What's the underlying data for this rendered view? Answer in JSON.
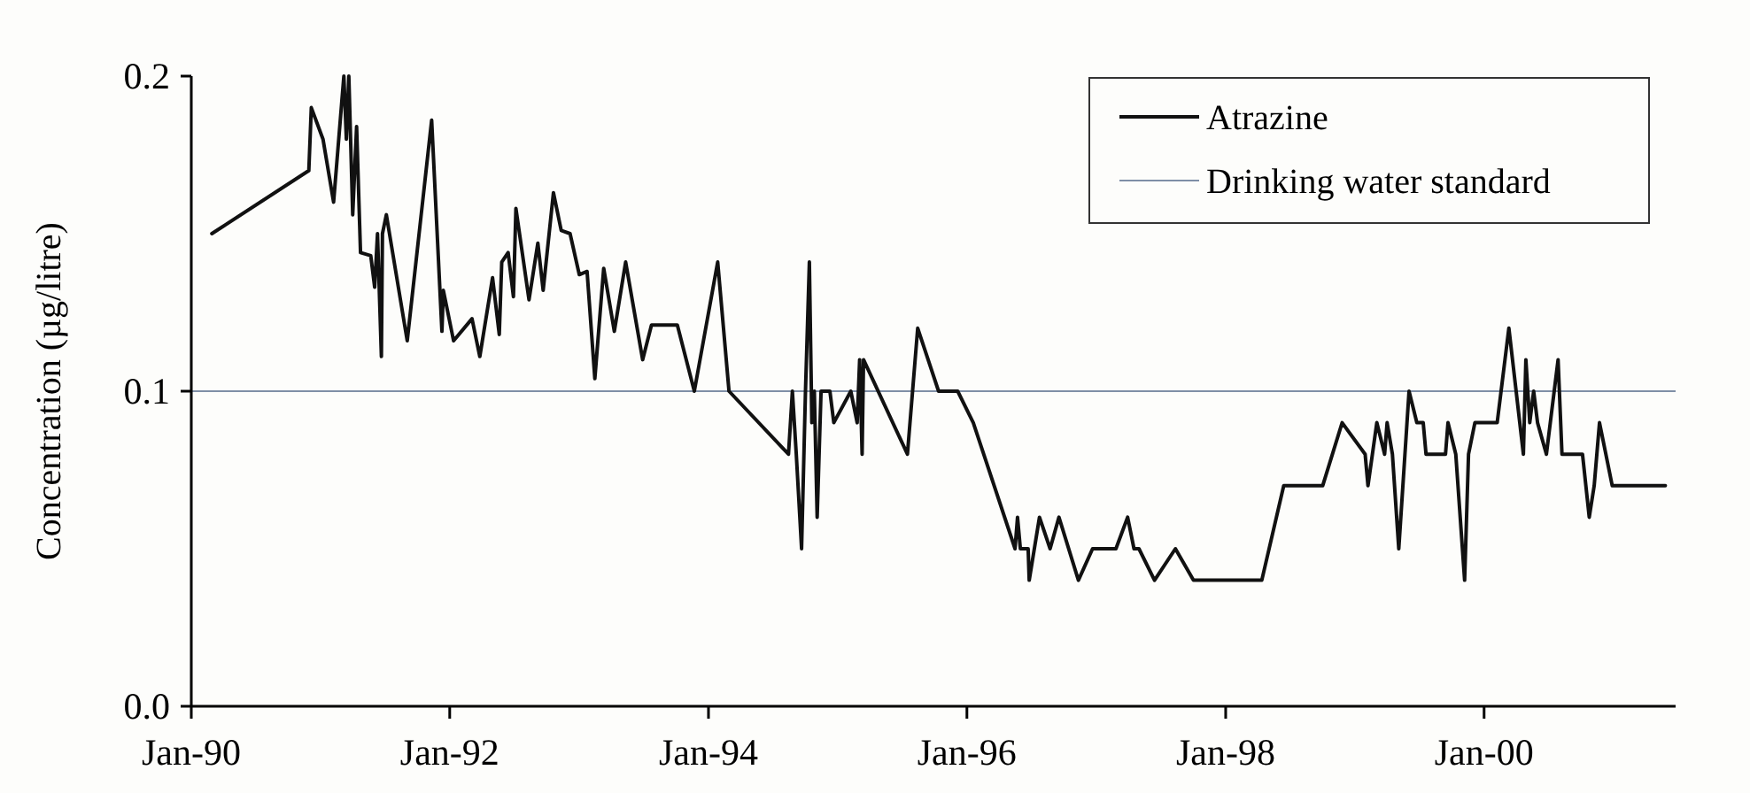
{
  "chart_data": {
    "type": "line",
    "ylabel": "Concentration (µg/litre)",
    "xlim": [
      "1990-01-01",
      "2001-06-25"
    ],
    "xticks": [
      {
        "value": "1990-01-01",
        "label": "Jan-90"
      },
      {
        "value": "1992-01-01",
        "label": "Jan-92"
      },
      {
        "value": "1994-01-01",
        "label": "Jan-94"
      },
      {
        "value": "1996-01-01",
        "label": "Jan-96"
      },
      {
        "value": "1998-01-01",
        "label": "Jan-98"
      },
      {
        "value": "2000-01-01",
        "label": "Jan-00"
      }
    ],
    "ylim": [
      0,
      0.2
    ],
    "yticks": [
      {
        "value": 0,
        "label": "0.0"
      },
      0.1,
      0.2
    ],
    "grid": false,
    "legend": "top right",
    "marker": "none",
    "line_style": "solid",
    "series": [
      {
        "name": "Atrazine",
        "color": "#111111",
        "x": [
          "1990-02-28",
          "1990-11-29",
          "1990-12-06",
          "1991-01-08",
          "1991-02-07",
          "1991-03-08",
          "1991-03-15",
          "1991-03-22",
          "1991-04-02",
          "1991-04-13",
          "1991-04-24",
          "1991-05-23",
          "1991-06-03",
          "1991-06-11",
          "1991-06-22",
          "1991-06-25",
          "1991-07-06",
          "1991-09-03",
          "1991-11-11",
          "1991-12-10",
          "1991-12-14",
          "1992-01-12",
          "1992-03-04",
          "1992-03-26",
          "1992-05-01",
          "1992-05-20",
          "1992-05-27",
          "1992-06-14",
          "1992-06-29",
          "1992-07-06",
          "1992-08-12",
          "1992-09-06",
          "1992-09-21",
          "1992-10-20",
          "1992-11-11",
          "1992-12-06",
          "1993-01-01",
          "1993-01-23",
          "1993-02-14",
          "1993-03-11",
          "1993-04-10",
          "1993-05-12",
          "1993-06-29",
          "1993-07-24",
          "1993-10-05",
          "1993-11-22",
          "1994-01-27",
          "1994-02-28",
          "1994-08-15",
          "1994-08-26",
          "1994-09-06",
          "1994-09-21",
          "1994-10-02",
          "1994-10-13",
          "1994-10-20",
          "1994-10-27",
          "1994-11-04",
          "1994-11-15",
          "1994-12-10",
          "1994-12-21",
          "1995-02-07",
          "1995-02-25",
          "1995-03-04",
          "1995-03-11",
          "1995-03-15",
          "1995-07-17",
          "1995-08-15",
          "1995-10-13",
          "1995-12-06",
          "1996-01-19",
          "1996-05-16",
          "1996-05-23",
          "1996-05-31",
          "1996-06-22",
          "1996-06-25",
          "1996-07-24",
          "1996-08-23",
          "1996-09-17",
          "1996-11-11",
          "1996-12-21",
          "1997-02-25",
          "1997-03-30",
          "1997-04-17",
          "1997-05-01",
          "1997-06-14",
          "1997-08-12",
          "1997-10-02",
          "1998-04-13",
          "1998-06-14",
          "1998-10-02",
          "1998-11-26",
          "1999-01-30",
          "1999-02-07",
          "1999-03-04",
          "1999-03-26",
          "1999-04-02",
          "1999-04-17",
          "1999-05-05",
          "1999-06-03",
          "1999-06-25",
          "1999-07-13",
          "1999-07-21",
          "1999-09-14",
          "1999-09-21",
          "1999-10-13",
          "1999-11-07",
          "1999-11-18",
          "1999-12-06",
          "2000-02-07",
          "2000-03-11",
          "2000-04-21",
          "2000-04-28",
          "2000-05-09",
          "2000-05-20",
          "2000-05-31",
          "2000-06-25",
          "2000-07-28",
          "2000-08-08",
          "2000-10-05",
          "2000-10-24",
          "2000-11-07",
          "2000-11-22",
          "2000-12-28",
          "2001-05-27"
        ],
        "values": [
          0.15,
          0.17,
          0.19,
          0.18,
          0.16,
          0.2,
          0.18,
          0.2,
          0.156,
          0.184,
          0.144,
          0.143,
          0.133,
          0.15,
          0.111,
          0.15,
          0.156,
          0.116,
          0.186,
          0.119,
          0.132,
          0.116,
          0.123,
          0.111,
          0.136,
          0.118,
          0.141,
          0.144,
          0.13,
          0.158,
          0.129,
          0.147,
          0.132,
          0.163,
          0.151,
          0.15,
          0.137,
          0.138,
          0.104,
          0.139,
          0.119,
          0.141,
          0.11,
          0.121,
          0.121,
          0.1,
          0.141,
          0.1,
          0.08,
          0.1,
          0.08,
          0.05,
          0.1,
          0.141,
          0.09,
          0.1,
          0.06,
          0.1,
          0.1,
          0.09,
          0.1,
          0.09,
          0.11,
          0.08,
          0.11,
          0.08,
          0.12,
          0.1,
          0.1,
          0.09,
          0.05,
          0.06,
          0.05,
          0.05,
          0.04,
          0.06,
          0.05,
          0.06,
          0.04,
          0.05,
          0.05,
          0.06,
          0.05,
          0.05,
          0.04,
          0.05,
          0.04,
          0.04,
          0.07,
          0.07,
          0.09,
          0.08,
          0.07,
          0.09,
          0.08,
          0.09,
          0.08,
          0.05,
          0.1,
          0.09,
          0.09,
          0.08,
          0.08,
          0.09,
          0.08,
          0.04,
          0.08,
          0.09,
          0.09,
          0.12,
          0.08,
          0.11,
          0.09,
          0.1,
          0.09,
          0.08,
          0.11,
          0.08,
          0.08,
          0.06,
          0.07,
          0.09,
          0.07,
          0.07
        ]
      }
    ],
    "ref_lines": [
      {
        "axis": "y",
        "value": 0.1,
        "label": "Drinking water standard",
        "color": "#7f8fa6",
        "line_style": "solid"
      }
    ]
  }
}
